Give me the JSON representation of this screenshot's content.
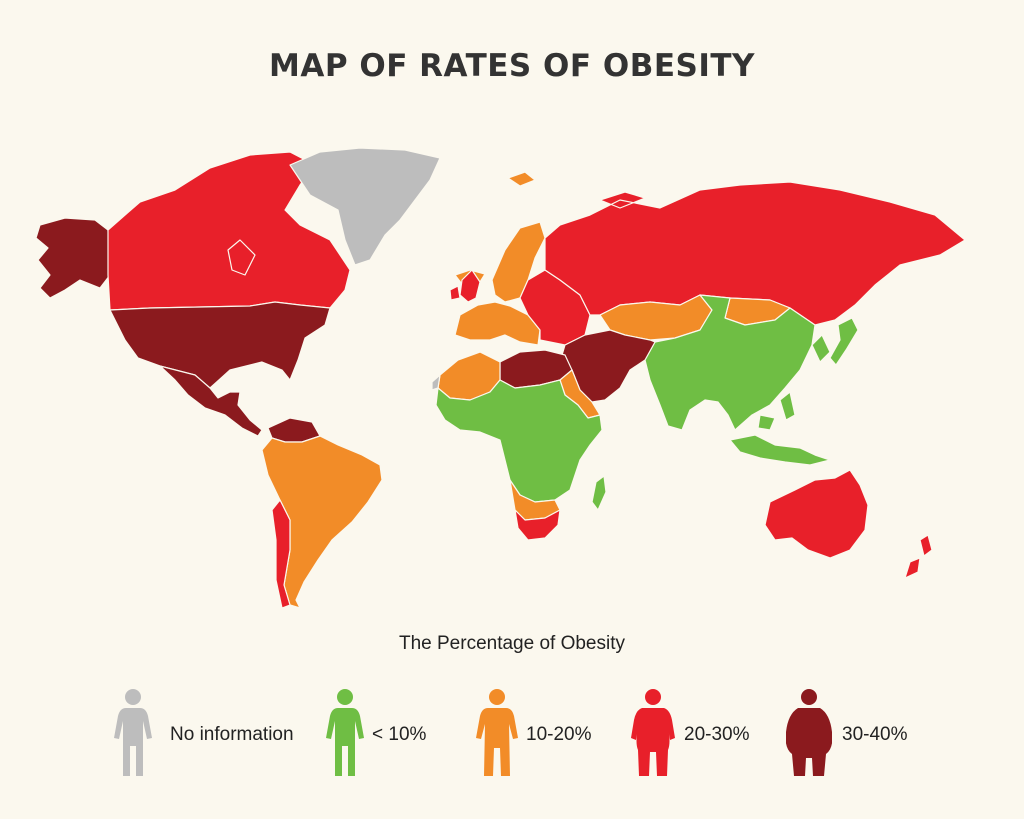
{
  "title": "MAP OF RATES OF OBESITY",
  "legend": {
    "title": "The Percentage of Obesity",
    "items": [
      {
        "label": "No information",
        "color": "#BDBDBD",
        "icon": "person-thin-icon"
      },
      {
        "label": "< 10%",
        "color": "#6FBE44",
        "icon": "person-thin-icon"
      },
      {
        "label": "10-20%",
        "color": "#F28C28",
        "icon": "person-medium-icon"
      },
      {
        "label": "20-30%",
        "color": "#E8202A",
        "icon": "person-heavy-icon"
      },
      {
        "label": "30-40%",
        "color": "#8B1A1E",
        "icon": "person-obese-icon"
      }
    ]
  },
  "map": {
    "colors": {
      "no_info": "#BDBDBD",
      "lt10": "#6FBE44",
      "p10_20": "#F28C28",
      "p20_30": "#E8202A",
      "p30_40": "#8B1A1E"
    },
    "regions": [
      {
        "name": "alaska",
        "category": "p30_40"
      },
      {
        "name": "canada",
        "category": "p20_30"
      },
      {
        "name": "usa",
        "category": "p30_40"
      },
      {
        "name": "mexico-central-america",
        "category": "p30_40"
      },
      {
        "name": "greenland",
        "category": "no_info"
      },
      {
        "name": "venezuela",
        "category": "p30_40"
      },
      {
        "name": "south-america",
        "category": "p10_20"
      },
      {
        "name": "chile",
        "category": "p20_30"
      },
      {
        "name": "iceland",
        "category": "p10_20"
      },
      {
        "name": "scandinavia",
        "category": "p10_20"
      },
      {
        "name": "uk-ireland",
        "category": "p20_30"
      },
      {
        "name": "western-europe",
        "category": "p10_20"
      },
      {
        "name": "eastern-europe",
        "category": "p20_30"
      },
      {
        "name": "russia",
        "category": "p20_30"
      },
      {
        "name": "central-asia",
        "category": "p10_20"
      },
      {
        "name": "mongolia",
        "category": "p10_20"
      },
      {
        "name": "china-south-asia",
        "category": "lt10"
      },
      {
        "name": "korea-japan",
        "category": "lt10"
      },
      {
        "name": "middle-east",
        "category": "p30_40"
      },
      {
        "name": "north-africa",
        "category": "p30_40"
      },
      {
        "name": "northwest-africa",
        "category": "p10_20"
      },
      {
        "name": "western-sahara",
        "category": "no_info"
      },
      {
        "name": "sub-saharan-africa",
        "category": "lt10"
      },
      {
        "name": "southern-africa",
        "category": "p10_20"
      },
      {
        "name": "south-africa",
        "category": "p20_30"
      },
      {
        "name": "madagascar",
        "category": "lt10"
      },
      {
        "name": "southeast-asia-islands",
        "category": "lt10"
      },
      {
        "name": "australia",
        "category": "p20_30"
      },
      {
        "name": "new-zealand",
        "category": "p20_30"
      }
    ]
  }
}
